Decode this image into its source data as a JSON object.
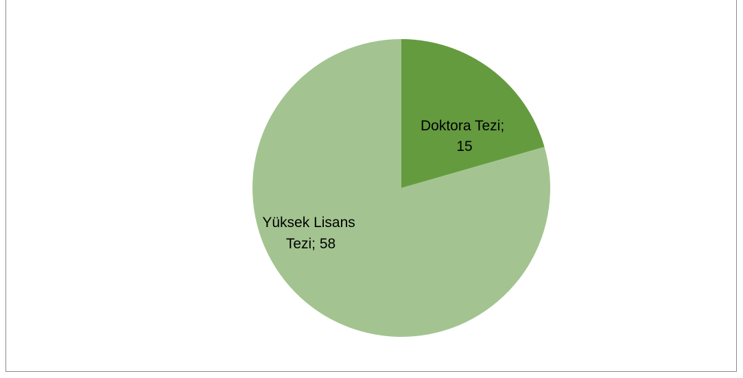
{
  "chart_data": {
    "type": "pie",
    "title": "",
    "legend": "none",
    "start_angle_deg": 0,
    "direction": "clockwise",
    "slices": [
      {
        "label": "Doktora Tezi",
        "value": 15,
        "color": "#649b3f",
        "label_lines": [
          "Doktora Tezi;",
          "15"
        ]
      },
      {
        "label": "Yüksek Lisans Tezi",
        "value": 58,
        "color": "#a3c490",
        "label_lines": [
          "Yüksek Lisans",
          "Tezi; 58"
        ]
      }
    ]
  }
}
